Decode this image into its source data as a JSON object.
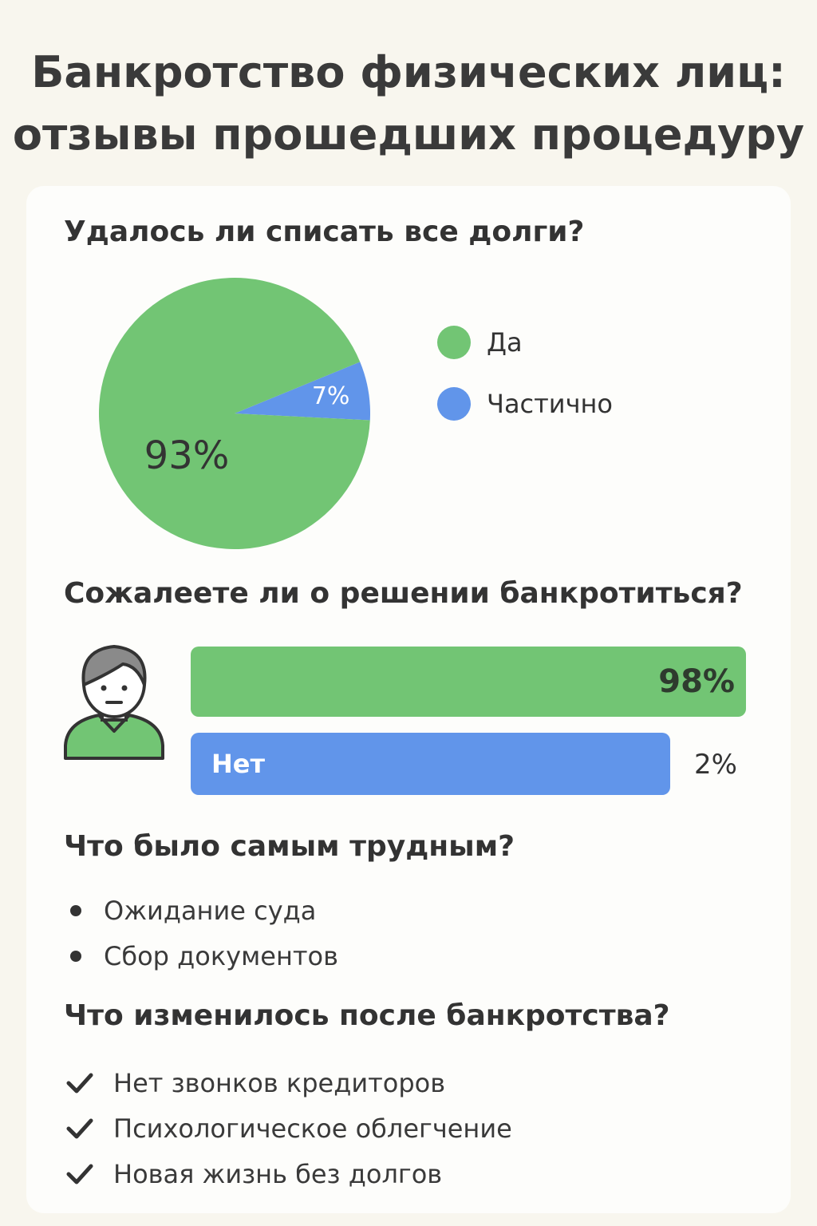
{
  "page": {
    "title_line1": "Банкротство физических лиц:",
    "title_line2": "отзывы прошедших процедуру"
  },
  "colors": {
    "green": "#72c574",
    "blue": "#6195ea",
    "text": "#333333",
    "background": "#f8f6ee"
  },
  "sections": {
    "debts": {
      "question": "Удалось ли списать все долги?"
    },
    "regret": {
      "question": "Сожалеете ли о решении банкротиться?",
      "avatar_icon": "person-avatar-icon"
    },
    "hardest": {
      "question": "Что было самым трудным?",
      "items": [
        "Ожидание суда",
        "Сбор документов"
      ]
    },
    "changes": {
      "question": "Что изменилось после банкротства?",
      "check_icon": "checkmark-icon",
      "items": [
        "Нет звонков кредиторов",
        "Психологическое облегчение",
        "Новая жизнь без долгов"
      ]
    }
  },
  "chart_data": [
    {
      "type": "pie",
      "title": "Удалось ли списать все долги?",
      "slices": [
        {
          "label": "Да",
          "value": 93,
          "display": "93%",
          "color": "#72c574"
        },
        {
          "label": "Частично",
          "value": 7,
          "display": "7%",
          "color": "#6195ea"
        }
      ],
      "legend": [
        "Да",
        "Частично"
      ],
      "legend_position": "right"
    },
    {
      "type": "bar",
      "orientation": "horizontal",
      "title": "Сожалеете ли о решении банкротиться?",
      "bars": [
        {
          "label": "",
          "value": 98,
          "display": "98%",
          "color": "#72c574"
        },
        {
          "label": "Нет",
          "value": 2,
          "display": "2%",
          "color": "#6195ea"
        }
      ]
    }
  ]
}
